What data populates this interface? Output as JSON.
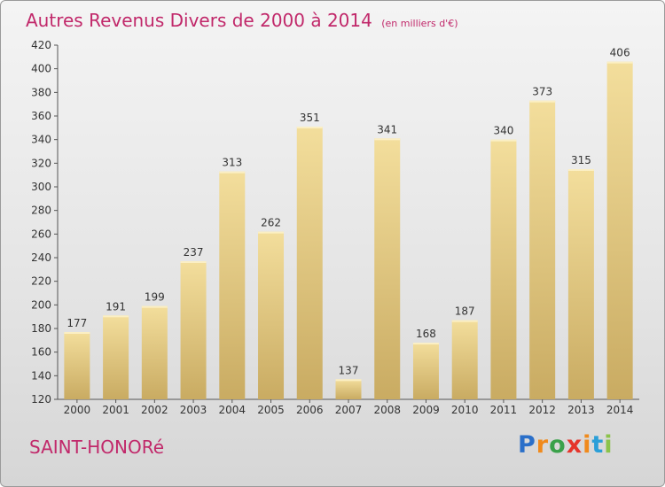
{
  "title": {
    "main": "Autres Revenus Divers de 2000 à 2014",
    "unit": "(en milliers d'€)"
  },
  "commune": "SAINT-HONORé",
  "logo": {
    "text": "Proxiti",
    "letters": [
      {
        "ch": "P",
        "color": "#2a6fc9"
      },
      {
        "ch": "r",
        "color": "#f08a1c"
      },
      {
        "ch": "o",
        "color": "#3aa14a"
      },
      {
        "ch": "x",
        "color": "#e5352b"
      },
      {
        "ch": "i",
        "color": "#f08a1c"
      },
      {
        "ch": "t",
        "color": "#2a9fd8"
      },
      {
        "ch": "i",
        "color": "#8bc34a"
      }
    ]
  },
  "chart_data": {
    "type": "bar",
    "title": "Autres Revenus Divers de 2000 à 2014",
    "subtitle": "(en milliers d'€)",
    "xlabel": "",
    "ylabel": "",
    "categories": [
      "2000",
      "2001",
      "2002",
      "2003",
      "2004",
      "2005",
      "2006",
      "2007",
      "2008",
      "2009",
      "2010",
      "2011",
      "2012",
      "2013",
      "2014"
    ],
    "values": [
      177,
      191,
      199,
      237,
      313,
      262,
      351,
      137,
      341,
      168,
      187,
      340,
      373,
      315,
      406
    ],
    "ylim": [
      120,
      420
    ],
    "yticks": [
      120,
      140,
      160,
      180,
      200,
      220,
      240,
      260,
      280,
      300,
      320,
      340,
      360,
      380,
      400,
      420
    ],
    "grid": false,
    "legend": "none",
    "bar_color": "#e8cf85",
    "text_color": "#c1286a"
  }
}
